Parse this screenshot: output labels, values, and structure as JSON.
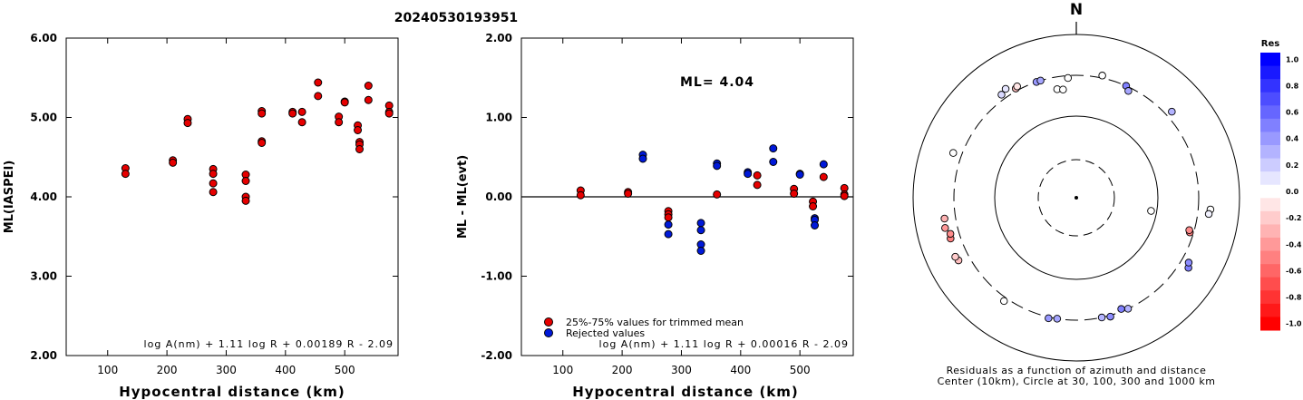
{
  "title": "20240530193951",
  "chart_data": [
    {
      "type": "scatter",
      "ylabel": "ML(IASPEI)",
      "xlabel": "Hypocentral distance (km)",
      "xlim": [
        30,
        590
      ],
      "ylim": [
        2.0,
        6.0
      ],
      "xticks": [
        100,
        200,
        300,
        400,
        500
      ],
      "yticks": [
        2.0,
        3.0,
        4.0,
        5.0,
        6.0
      ],
      "ytick_labels": [
        "2.00",
        "3.00",
        "4.00",
        "5.00",
        "6.00"
      ],
      "formula": "log A(nm) + 1.11 log R + 0.00189 R - 2.09",
      "series": [
        {
          "color": "#e60000",
          "points": [
            [
              130,
              4.36
            ],
            [
              130,
              4.29
            ],
            [
              210,
              4.46
            ],
            [
              210,
              4.43
            ],
            [
              235,
              4.98
            ],
            [
              235,
              4.93
            ],
            [
              278,
              4.35
            ],
            [
              278,
              4.29
            ],
            [
              278,
              4.17
            ],
            [
              278,
              4.06
            ],
            [
              333,
              4.28
            ],
            [
              333,
              4.2
            ],
            [
              333,
              4.0
            ],
            [
              333,
              3.95
            ],
            [
              360,
              5.08
            ],
            [
              360,
              5.05
            ],
            [
              360,
              4.7
            ],
            [
              360,
              4.68
            ],
            [
              412,
              5.07
            ],
            [
              412,
              5.05
            ],
            [
              428,
              5.07
            ],
            [
              428,
              4.94
            ],
            [
              455,
              5.44
            ],
            [
              455,
              5.27
            ],
            [
              490,
              5.01
            ],
            [
              490,
              4.94
            ],
            [
              500,
              5.2
            ],
            [
              500,
              5.19
            ],
            [
              522,
              4.9
            ],
            [
              522,
              4.84
            ],
            [
              525,
              4.69
            ],
            [
              525,
              4.66
            ],
            [
              525,
              4.6
            ],
            [
              540,
              5.4
            ],
            [
              540,
              5.22
            ],
            [
              575,
              5.15
            ],
            [
              575,
              5.07
            ],
            [
              575,
              5.05
            ]
          ]
        }
      ]
    },
    {
      "type": "scatter",
      "ylabel": "ML - ML(evt)",
      "xlabel": "Hypocentral distance (km)",
      "xlim": [
        30,
        590
      ],
      "ylim": [
        -2.0,
        2.0
      ],
      "xticks": [
        100,
        200,
        300,
        400,
        500
      ],
      "yticks": [
        -2.0,
        -1.0,
        0.0,
        1.0,
        2.0
      ],
      "ytick_labels": [
        "-2.00",
        "-1.00",
        "0.00",
        "1.00",
        "2.00"
      ],
      "annotation": "ML= 4.04",
      "formula": "log A(nm) + 1.11 log R + 0.00016 R - 2.09",
      "series": [
        {
          "name": "25%-75% values for trimmed mean",
          "color": "#e60000",
          "points": [
            [
              130,
              0.08
            ],
            [
              130,
              0.02
            ],
            [
              210,
              0.06
            ],
            [
              210,
              0.04
            ],
            [
              278,
              -0.18
            ],
            [
              278,
              -0.22
            ],
            [
              278,
              -0.26
            ],
            [
              360,
              0.03
            ],
            [
              428,
              0.27
            ],
            [
              428,
              0.15
            ],
            [
              490,
              0.1
            ],
            [
              490,
              0.04
            ],
            [
              522,
              -0.06
            ],
            [
              522,
              -0.12
            ],
            [
              540,
              0.25
            ],
            [
              575,
              0.11
            ],
            [
              575,
              0.03
            ],
            [
              575,
              0.01
            ]
          ]
        },
        {
          "name": "Rejected values",
          "color": "#0019d9",
          "points": [
            [
              235,
              0.53
            ],
            [
              235,
              0.48
            ],
            [
              278,
              -0.35
            ],
            [
              278,
              -0.47
            ],
            [
              333,
              -0.33
            ],
            [
              333,
              -0.42
            ],
            [
              333,
              -0.6
            ],
            [
              333,
              -0.68
            ],
            [
              360,
              0.42
            ],
            [
              360,
              0.39
            ],
            [
              412,
              0.31
            ],
            [
              412,
              0.29
            ],
            [
              455,
              0.61
            ],
            [
              455,
              0.44
            ],
            [
              500,
              0.29
            ],
            [
              500,
              0.28
            ],
            [
              525,
              -0.27
            ],
            [
              525,
              -0.29
            ],
            [
              525,
              -0.36
            ],
            [
              540,
              0.41
            ]
          ]
        }
      ]
    }
  ],
  "polar": {
    "north_label": "N",
    "caption_line1": "Residuals as a function of azimuth and distance",
    "caption_line2": "Center (10km), Circle at 30, 100, 300 and 1000 km",
    "stations": [
      [
        -36,
        1.04,
        0.15
      ],
      [
        -33,
        1.06,
        0.1
      ],
      [
        -29,
        1.02,
        -0.25
      ],
      [
        -28,
        1.03,
        -0.1
      ],
      [
        -19,
        1.0,
        0.4
      ],
      [
        -17,
        1.0,
        0.35
      ],
      [
        -10,
        0.9,
        0.0
      ],
      [
        -7,
        0.89,
        0.0
      ],
      [
        -4,
        0.98,
        0.0
      ],
      [
        12,
        1.02,
        0.0
      ],
      [
        24,
        1.0,
        0.5
      ],
      [
        26,
        0.97,
        0.35
      ],
      [
        48,
        1.05,
        0.3
      ],
      [
        -70,
        1.07,
        0.0
      ],
      [
        -103,
        1.1,
        -0.4
      ],
      [
        -99,
        1.09,
        -0.3
      ],
      [
        -108,
        1.08,
        -0.5
      ],
      [
        -106,
        1.07,
        -0.45
      ],
      [
        -118,
        1.09,
        -0.25
      ],
      [
        -116,
        1.1,
        -0.2
      ],
      [
        -145,
        1.03,
        0.0
      ],
      [
        -167,
        1.01,
        0.4
      ],
      [
        -171,
        1.0,
        0.35
      ],
      [
        155,
        1.0,
        0.3
      ],
      [
        158,
        0.98,
        0.5
      ],
      [
        168,
        1.0,
        0.3
      ],
      [
        164,
        1.01,
        0.45
      ],
      [
        122,
        1.08,
        0.5
      ],
      [
        120,
        1.06,
        0.45
      ],
      [
        95,
        1.1,
        0.0
      ],
      [
        97,
        1.09,
        0.05
      ],
      [
        100,
        0.62,
        0.0
      ],
      [
        107,
        0.97,
        -0.5
      ],
      [
        106,
        0.96,
        -0.45
      ]
    ]
  },
  "colorbar": {
    "label": "Res",
    "levels": [
      1.0,
      0.9,
      0.8,
      0.7,
      0.6,
      0.5,
      0.4,
      0.3,
      0.2,
      0.1,
      0.0,
      -0.1,
      -0.2,
      -0.3,
      -0.4,
      -0.5,
      -0.6,
      -0.7,
      -0.8,
      -0.9,
      -1.0
    ],
    "tick_labels": [
      "1.0",
      "0.8",
      "0.6",
      "0.4",
      "0.2",
      "0.0",
      "-0.2",
      "-0.4",
      "-0.6",
      "-0.8",
      "-1.0"
    ]
  }
}
